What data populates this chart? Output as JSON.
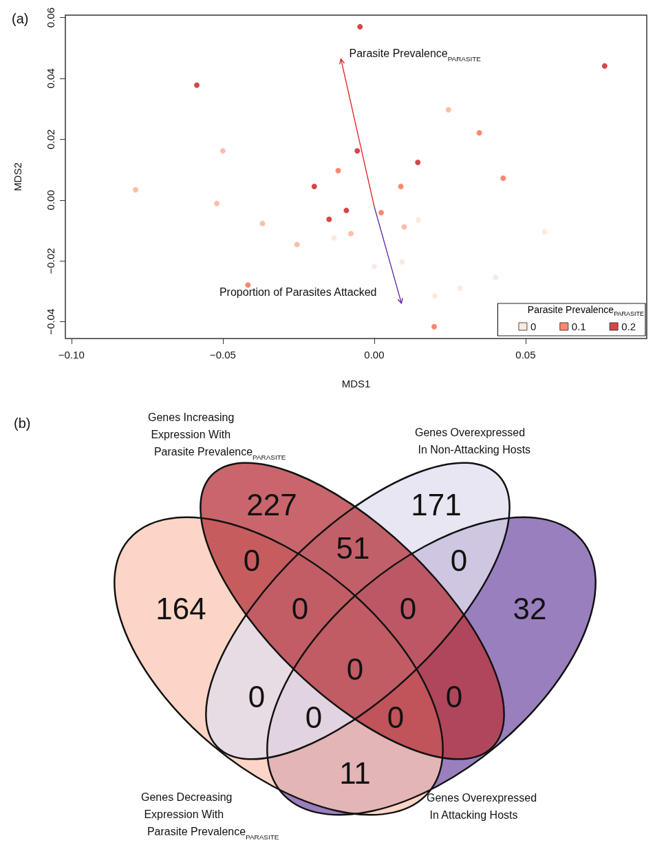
{
  "chart_data": [
    {
      "type": "scatter",
      "title": "(a)",
      "xlabel": "MDS1",
      "ylabel": "MDS2",
      "legend_title": "Parasite Prevalence$_{PARASITE}$",
      "legend": "bottom right",
      "grid": false,
      "marker": "circle",
      "xlim": [
        -0.102,
        0.09
      ],
      "ylim": [
        -0.0455,
        0.0608
      ],
      "xticks": [
        {
          "value": -0.1,
          "label": "−0.10"
        },
        {
          "value": -0.05,
          "label": "−0.05"
        },
        {
          "value": 0,
          "label": "0.00"
        },
        0.05
      ],
      "yticks": [
        {
          "value": -0.04,
          "label": "−0.04"
        },
        {
          "value": -0.02,
          "label": "−0.02"
        },
        {
          "value": 0,
          "label": "0.00"
        },
        0.02,
        0.04,
        0.06
      ],
      "series": [
        {
          "name": "0",
          "color": "#fde3d8",
          "x": [
            -0.0133,
            0.0,
            0.0092,
            0.0146,
            0.0563,
            0.0401,
            0.0284,
            0.02
          ],
          "values": [
            -0.0124,
            -0.0218,
            -0.0203,
            -0.0065,
            -0.0104,
            -0.0254,
            -0.029,
            -0.0315
          ]
        },
        {
          "color": "#fcae91",
          "x": [
            -0.0788,
            -0.05,
            -0.052,
            -0.0369,
            -0.0255,
            -0.0077,
            0.0099,
            0.0245
          ],
          "values": [
            0.0034,
            0.0162,
            -0.0011,
            -0.0077,
            -0.0146,
            -0.011,
            -0.0088,
            0.0297
          ]
        },
        {
          "name": "0.1",
          "color": "#fb6a4a",
          "x": [
            -0.0119,
            0.0347,
            0.0426,
            0.0088,
            0.0023,
            -0.0417,
            0.0198
          ],
          "values": [
            0.0097,
            0.0221,
            0.0072,
            0.0045,
            -0.0041,
            -0.0279,
            -0.0416
          ]
        },
        {
          "name": "0.2",
          "color": "#cb181d",
          "x": [
            -0.0047,
            0.0761,
            -0.0586,
            -0.0056,
            0.0144,
            -0.0198,
            -0.0092,
            -0.0149
          ],
          "values": [
            0.057,
            0.0441,
            0.0378,
            0.0162,
            0.0124,
            0.0045,
            -0.0034,
            -0.0063
          ]
        }
      ],
      "annotations": [
        "Parasite Prevalence$_{PARASITE}$",
        "Proportion of Parasites Attacked"
      ]
    },
    {
      "type": "other",
      "title": "(b)",
      "categories": [
        "Genes Decreasing\n Expression With\n  Parasite Prevalence$_{PARASITE}$",
        "Genes Increasing\n Expression With\n  Parasite Prevalence$_{PARASITE}$",
        "Genes Overexpressed\n In Non-Attacking Hosts",
        "Genes Overexpressed\n In Attacking Hosts"
      ],
      "colors": [
        "#fbc7b3",
        "#b6333b",
        "#e0deee",
        "#7854aa"
      ],
      "annotations": [
        "164",
        "227",
        "171",
        "32",
        "0",
        "51",
        "0",
        "0",
        "0",
        "11",
        "0",
        "0",
        "0",
        "0",
        "0"
      ]
    }
  ]
}
